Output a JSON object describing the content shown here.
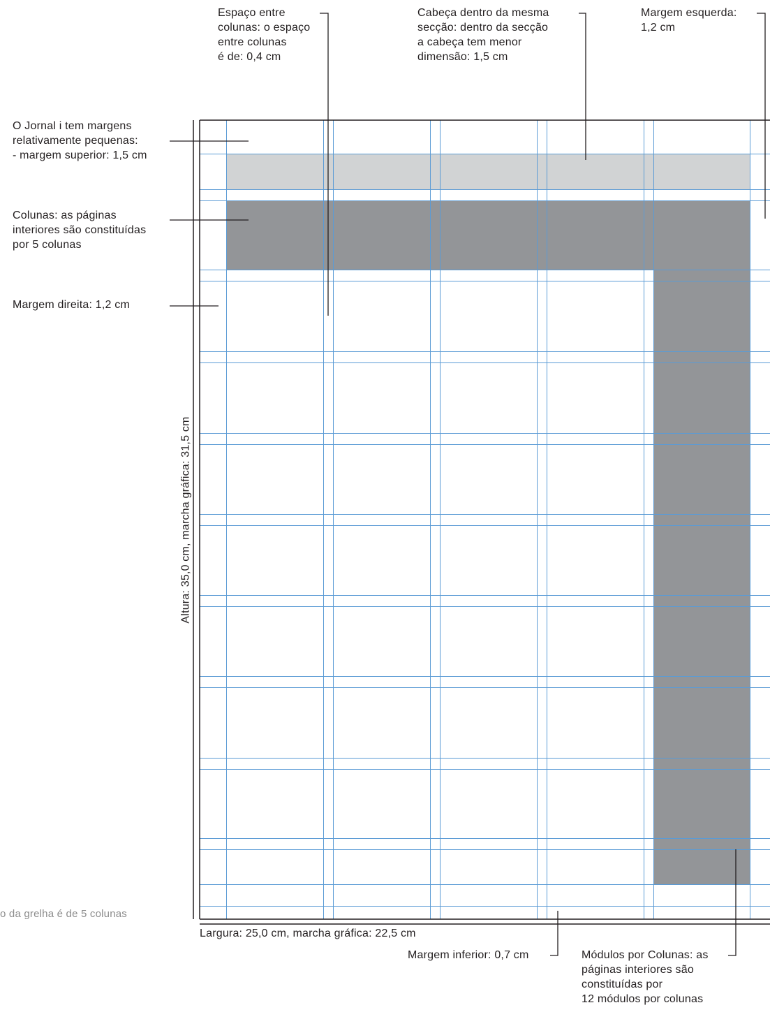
{
  "annotations": {
    "gutter": {
      "lines": [
        "Espaço entre",
        "colunas: o espaço",
        "entre colunas",
        "é de: 0,4 cm"
      ]
    },
    "head": {
      "lines": [
        "Cabeça dentro da mesma",
        "secção: dentro da secção",
        "a cabeça tem menor",
        "dimensão: 1,5 cm"
      ]
    },
    "left_margin": {
      "lines": [
        "Margem esquerda:",
        "1,2 cm"
      ]
    },
    "margins": {
      "lines": [
        "O Jornal i tem margens",
        "relativamente pequenas:",
        "- margem superior: 1,5 cm"
      ]
    },
    "columns": {
      "lines": [
        "Colunas: as páginas",
        "interiores são constituídas",
        "por 5 colunas"
      ]
    },
    "right_margin": {
      "lines": [
        "Margem direita: 1,2 cm"
      ]
    },
    "height": {
      "lines": [
        "Altura: 35,0 cm, marcha gráfica: 31,5 cm"
      ]
    },
    "width": {
      "lines": [
        "Largura: 25,0 cm, marcha gráfica: 22,5 cm"
      ]
    },
    "bottom_margin": {
      "lines": [
        "Margem inferior: 0,7 cm"
      ]
    },
    "modules": {
      "lines": [
        "Módulos por Colunas: as",
        "páginas interiores são",
        "constituídas por",
        "12 módulos por colunas"
      ]
    },
    "clipped_caption": {
      "lines": [
        "o da grelha é de 5 colunas"
      ]
    }
  },
  "colors": {
    "guide": "#5b9bd5",
    "header_block": "#d1d3d4",
    "content_block": "#939598",
    "ink": "#231f20",
    "caption": "#8c8c8c"
  }
}
